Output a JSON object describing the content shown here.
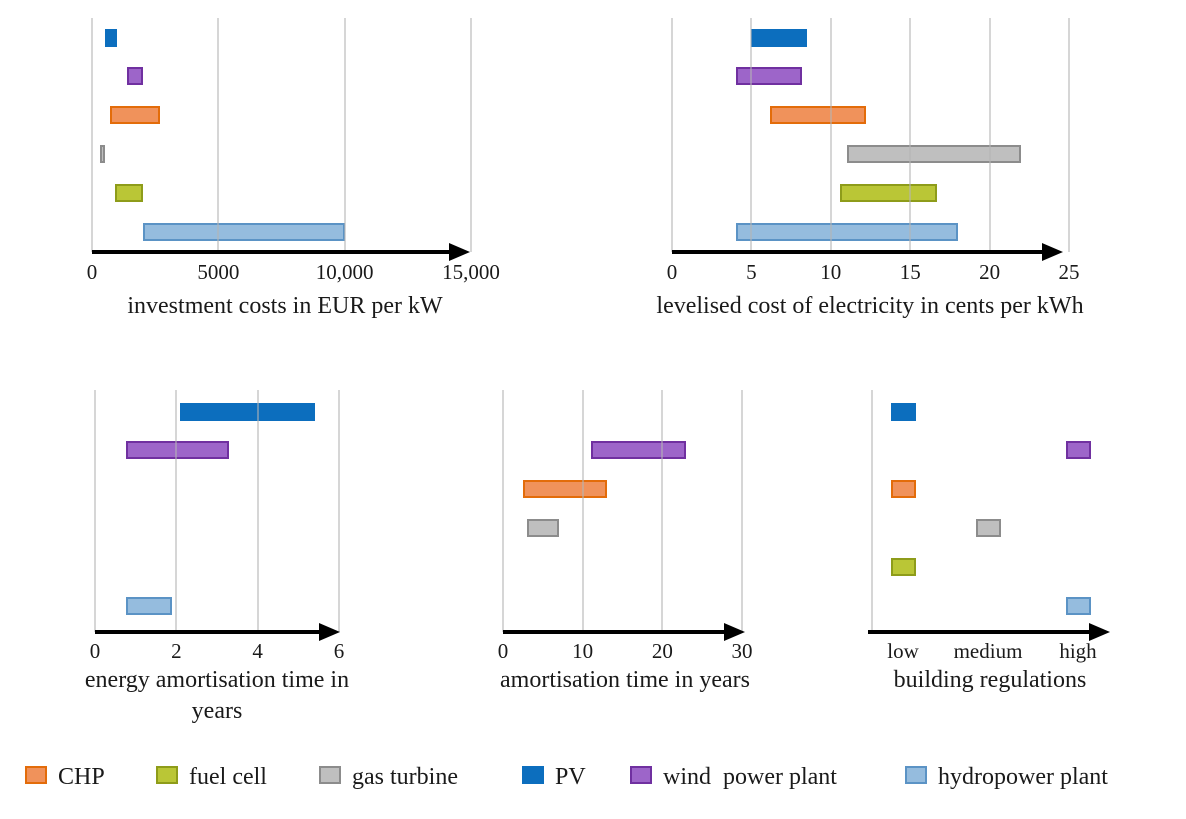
{
  "figure": {
    "background": "#ffffff",
    "grid_color": "#d9d9d9",
    "axis_color": "#000000"
  },
  "series_order": [
    "PV",
    "wind power plant",
    "CHP",
    "gas turbine",
    "fuel cell",
    "hydropower plant"
  ],
  "colors": {
    "PV": {
      "fill": "#0c6ebe",
      "border": "#0c6ebe"
    },
    "wind power plant": {
      "fill": "#9d65c9",
      "border": "#7030a0"
    },
    "CHP": {
      "fill": "#f0925b",
      "border": "#e36c0a"
    },
    "gas turbine": {
      "fill": "#bfbfbf",
      "border": "#8c8c8c"
    },
    "fuel cell": {
      "fill": "#bac636",
      "border": "#8e9c1a"
    },
    "hydropower plant": {
      "fill": "#95bcde",
      "border": "#5b93c5"
    }
  },
  "chart_data": [
    {
      "id": "investment-costs",
      "type": "bar",
      "subtype": "horizontal-range-bar",
      "title": "investment costs in EUR per kW",
      "xlim": [
        0,
        15000
      ],
      "grid": true,
      "ticks": [
        {
          "v": 0,
          "label": "0"
        },
        {
          "v": 5000,
          "label": "5000"
        },
        {
          "v": 10000,
          "label": "10,000"
        },
        {
          "v": 15000,
          "label": "15,000"
        }
      ],
      "series": [
        {
          "name": "PV",
          "min": 500,
          "max": 1000
        },
        {
          "name": "wind power plant",
          "min": 1400,
          "max": 2000
        },
        {
          "name": "CHP",
          "min": 700,
          "max": 2700
        },
        {
          "name": "gas turbine",
          "min": 300,
          "max": 500
        },
        {
          "name": "fuel cell",
          "min": 900,
          "max": 2000
        },
        {
          "name": "hydropower plant",
          "min": 2000,
          "max": 10000
        }
      ]
    },
    {
      "id": "levelised-cost",
      "type": "bar",
      "subtype": "horizontal-range-bar",
      "title": "levelised cost of electricity in cents per kWh",
      "xlim": [
        0,
        25
      ],
      "grid": true,
      "ticks": [
        {
          "v": 0,
          "label": "0"
        },
        {
          "v": 5,
          "label": "5"
        },
        {
          "v": 10,
          "label": "10"
        },
        {
          "v": 15,
          "label": "15"
        },
        {
          "v": 20,
          "label": "20"
        },
        {
          "v": 25,
          "label": "25"
        }
      ],
      "series": [
        {
          "name": "PV",
          "min": 5,
          "max": 8.5
        },
        {
          "name": "wind power plant",
          "min": 4,
          "max": 8.2
        },
        {
          "name": "CHP",
          "min": 6.2,
          "max": 12.2
        },
        {
          "name": "gas turbine",
          "min": 11,
          "max": 22
        },
        {
          "name": "fuel cell",
          "min": 10.6,
          "max": 16.7
        },
        {
          "name": "hydropower plant",
          "min": 4,
          "max": 18
        }
      ]
    },
    {
      "id": "energy-amortisation-time",
      "type": "bar",
      "subtype": "horizontal-range-bar",
      "title": "energy amortisation time in years",
      "xlim": [
        0,
        6
      ],
      "grid": true,
      "ticks": [
        {
          "v": 0,
          "label": "0"
        },
        {
          "v": 2,
          "label": "2"
        },
        {
          "v": 4,
          "label": "4"
        },
        {
          "v": 6,
          "label": "6"
        }
      ],
      "series": [
        {
          "name": "PV",
          "min": 2.1,
          "max": 5.4
        },
        {
          "name": "wind power plant",
          "min": 0.75,
          "max": 3.3
        },
        {
          "name": "hydropower plant",
          "min": 0.75,
          "max": 1.9
        }
      ]
    },
    {
      "id": "amortisation-time",
      "type": "bar",
      "subtype": "horizontal-range-bar",
      "title": "amortisation time in years",
      "xlim": [
        0,
        30
      ],
      "grid": true,
      "ticks": [
        {
          "v": 0,
          "label": "0"
        },
        {
          "v": 10,
          "label": "10"
        },
        {
          "v": 20,
          "label": "20"
        },
        {
          "v": 30,
          "label": "30"
        }
      ],
      "series": [
        {
          "name": "wind power plant",
          "min": 11,
          "max": 23
        },
        {
          "name": "CHP",
          "min": 2.5,
          "max": 13
        },
        {
          "name": "gas turbine",
          "min": 3,
          "max": 7
        }
      ]
    },
    {
      "id": "building-regulations",
      "type": "scatter",
      "subtype": "category-marker",
      "title": "building regulations",
      "categories": [
        "low",
        "medium",
        "high"
      ],
      "points": [
        {
          "name": "PV",
          "category": "low"
        },
        {
          "name": "wind power plant",
          "category": "high"
        },
        {
          "name": "CHP",
          "category": "low"
        },
        {
          "name": "gas turbine",
          "category": "medium"
        },
        {
          "name": "fuel cell",
          "category": "low"
        },
        {
          "name": "hydropower plant",
          "category": "high"
        }
      ]
    }
  ],
  "legend": [
    {
      "series": "CHP",
      "label": "CHP"
    },
    {
      "series": "fuel cell",
      "label": "fuel cell"
    },
    {
      "series": "gas turbine",
      "label": "gas turbine"
    },
    {
      "series": "PV",
      "label": "PV"
    },
    {
      "series": "wind power plant",
      "label": "wind  power plant"
    },
    {
      "series": "hydropower plant",
      "label": "hydropower plant"
    }
  ]
}
